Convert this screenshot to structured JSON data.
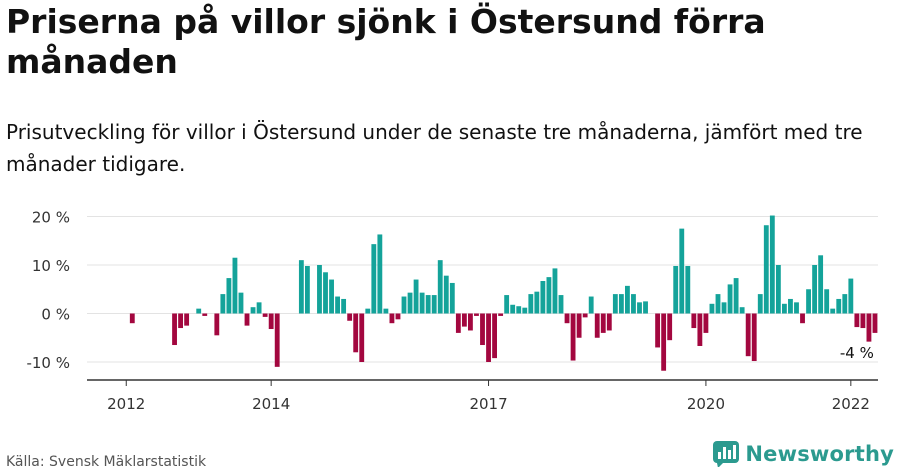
{
  "title": "Priserna på villor sjönk i Östersund förra månaden",
  "subtitle": "Prisutveckling för villor i Östersund under de senaste tre månaderna, jämfört med tre månader tidigare.",
  "source": "Källa: Svensk Mäklarstatistik",
  "brand": {
    "name": "Newsworthy",
    "icon": "newsworthy-logo-icon"
  },
  "colors": {
    "positive": "#14a39a",
    "negative": "#a3073f",
    "grid": "#e3e3e3",
    "axis": "#333333",
    "text": "#333333"
  },
  "chart_data": {
    "type": "bar",
    "title": "",
    "xlabel": "",
    "ylabel": "",
    "ylim": [
      -14,
      21
    ],
    "yticks": [
      20,
      10,
      0,
      -10
    ],
    "ytick_labels": [
      "20 %",
      "10 %",
      "0 %",
      "-10 %"
    ],
    "start": "2011-07",
    "xticks": [
      {
        "date": "2012-01",
        "label": "2012"
      },
      {
        "date": "2014-01",
        "label": "2014"
      },
      {
        "date": "2017-01",
        "label": "2017"
      },
      {
        "date": "2020-01",
        "label": "2020"
      },
      {
        "date": "2022-01",
        "label": "2022"
      }
    ],
    "annotation": {
      "text": "-4 %",
      "date": "2022-02"
    },
    "grid": true,
    "series": [
      {
        "values": [
          0,
          0,
          0,
          0,
          0,
          0,
          0,
          -2,
          0,
          0,
          0,
          0,
          0,
          0,
          -6.5,
          -3,
          -2.5,
          0,
          1,
          -0.5,
          0,
          -4.5,
          4,
          7.3,
          11.5,
          4.3,
          -2.5,
          1.3,
          2.3,
          -0.7,
          -3.2,
          -11,
          0,
          0,
          0,
          11,
          9.8,
          0,
          10,
          8.5,
          7,
          3.5,
          3,
          -1.5,
          -8,
          -10,
          1,
          14.3,
          16.3,
          1,
          -2,
          -1.2,
          3.5,
          4.3,
          7,
          4.3,
          3.8,
          3.8,
          11,
          7.8,
          6.3,
          -4,
          -2.7,
          -3.5,
          -0.5,
          -6.5,
          -10,
          -9.2,
          -0.5,
          3.8,
          1.8,
          1.5,
          1.2,
          4,
          4.5,
          6.7,
          7.5,
          9.3,
          3.8,
          -2,
          -9.7,
          -5,
          -0.8,
          3.5,
          -5,
          -4,
          -3.5,
          4,
          4,
          5.7,
          4,
          2.3,
          2.5,
          0,
          -7,
          -11.8,
          -5.5,
          9.8,
          17.5,
          9.8,
          -3,
          -6.7,
          -4,
          2,
          4,
          2.3,
          6,
          7.3,
          1.3,
          -8.8,
          -9.8,
          4,
          18.2,
          20.2,
          10,
          2,
          3,
          2.3,
          -2,
          5,
          10,
          12,
          5,
          1,
          3,
          4,
          7.2,
          -2.8,
          -3,
          -5.8,
          -4
        ]
      }
    ]
  }
}
